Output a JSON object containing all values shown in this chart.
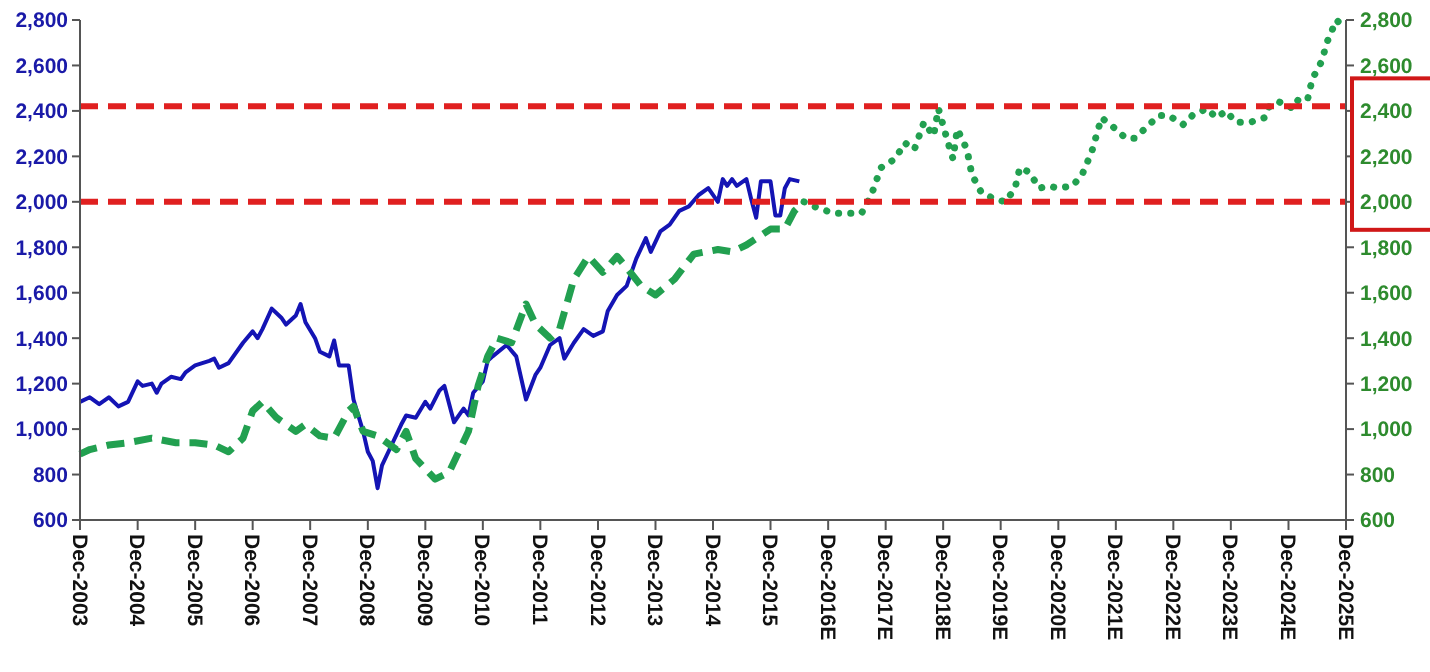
{
  "chart_data": {
    "type": "line",
    "marker": "none",
    "grid": false,
    "xlim": [
      "2003-12",
      "2025-12"
    ],
    "xticks": [
      {
        "value": "2003-12",
        "label": "Dec-2003"
      },
      {
        "value": "2004-12",
        "label": "Dec-2004"
      },
      {
        "value": "2005-12",
        "label": "Dec-2005"
      },
      {
        "value": "2006-12",
        "label": "Dec-2006"
      },
      {
        "value": "2007-12",
        "label": "Dec-2007"
      },
      {
        "value": "2008-12",
        "label": "Dec-2008"
      },
      {
        "value": "2009-12",
        "label": "Dec-2009"
      },
      {
        "value": "2010-12",
        "label": "Dec-2010"
      },
      {
        "value": "2011-12",
        "label": "Dec-2011"
      },
      {
        "value": "2012-12",
        "label": "Dec-2012"
      },
      {
        "value": "2013-12",
        "label": "Dec-2013"
      },
      {
        "value": "2014-12",
        "label": "Dec-2014"
      },
      {
        "value": "2015-12",
        "label": "Dec-2015"
      },
      {
        "value": "2016-12",
        "label": "Dec-2016E"
      },
      {
        "value": "2017-12",
        "label": "Dec-2017E"
      },
      {
        "value": "2018-12",
        "label": "Dec-2018E"
      },
      {
        "value": "2019-12",
        "label": "Dec-2019E"
      },
      {
        "value": "2020-12",
        "label": "Dec-2020E"
      },
      {
        "value": "2021-12",
        "label": "Dec-2021E"
      },
      {
        "value": "2022-12",
        "label": "Dec-2022E"
      },
      {
        "value": "2023-12",
        "label": "Dec-2023E"
      },
      {
        "value": "2024-12",
        "label": "Dec-2024E"
      },
      {
        "value": "2025-12",
        "label": "Dec-2025E"
      }
    ],
    "ylim": [
      600,
      2800
    ],
    "yticks": [
      600,
      800,
      {
        "value": 1000,
        "label": "1,000"
      },
      {
        "value": 1200,
        "label": "1,200"
      },
      {
        "value": 1400,
        "label": "1,400"
      },
      {
        "value": 1600,
        "label": "1,600"
      },
      {
        "value": 1800,
        "label": "1,800"
      },
      {
        "value": 2000,
        "label": "2,000"
      },
      {
        "value": 2200,
        "label": "2,200"
      },
      {
        "value": 2400,
        "label": "2,400"
      },
      {
        "value": 2600,
        "label": "2,600"
      },
      {
        "value": 2800,
        "label": "2,800"
      }
    ],
    "y2lim": [
      600,
      2800
    ],
    "y2ticks": [
      600,
      800,
      {
        "value": 1000,
        "label": "1,000"
      },
      {
        "value": 1200,
        "label": "1,200"
      },
      {
        "value": 1400,
        "label": "1,400"
      },
      {
        "value": 1600,
        "label": "1,600"
      },
      {
        "value": 1800,
        "label": "1,800"
      },
      {
        "value": 2000,
        "label": "2,000"
      },
      {
        "value": 2200,
        "label": "2,200"
      },
      {
        "value": 2400,
        "label": "2,400"
      },
      {
        "value": 2600,
        "label": "2,600"
      },
      {
        "value": 2800,
        "label": "2,800"
      }
    ],
    "ref_lines": [
      {
        "axis": "y",
        "value": 2000,
        "color": "#e02020",
        "line_style": "dashed"
      },
      {
        "axis": "y",
        "value": 2420,
        "color": "#e02020",
        "line_style": "dashed"
      }
    ],
    "series": [
      {
        "color": "#1414b4",
        "line_style": "solid",
        "x": [
          "2003-12",
          "2004-02",
          "2004-04",
          "2004-06",
          "2004-08",
          "2004-10",
          "2004-12",
          "2005-01",
          "2005-03",
          "2005-04",
          "2005-05",
          "2005-07",
          "2005-09",
          "2005-10",
          "2005-12",
          "2006-03",
          "2006-04",
          "2006-05",
          "2006-07",
          "2006-10",
          "2006-12",
          "2007-01",
          "2007-02",
          "2007-04",
          "2007-06",
          "2007-07",
          "2007-09",
          "2007-10",
          "2007-11",
          "2008-01",
          "2008-02",
          "2008-04",
          "2008-05",
          "2008-06",
          "2008-08",
          "2008-09",
          "2008-11",
          "2008-12",
          "2009-01",
          "2009-02",
          "2009-03",
          "2009-05",
          "2009-07",
          "2009-08",
          "2009-10",
          "2009-12",
          "2010-01",
          "2010-03",
          "2010-04",
          "2010-06",
          "2010-08",
          "2010-09",
          "2010-10",
          "2010-12",
          "2011-01",
          "2011-02",
          "2011-05",
          "2011-07",
          "2011-09",
          "2011-11",
          "2011-12",
          "2012-02",
          "2012-04",
          "2012-05",
          "2012-07",
          "2012-09",
          "2012-11",
          "2013-01",
          "2013-02",
          "2013-04",
          "2013-06",
          "2013-08",
          "2013-10",
          "2013-11",
          "2014-01",
          "2014-03",
          "2014-05",
          "2014-07",
          "2014-09",
          "2014-11",
          "2015-01",
          "2015-02",
          "2015-03",
          "2015-04",
          "2015-05",
          "2015-07",
          "2015-08",
          "2015-09",
          "2015-10",
          "2015-12",
          "2016-01",
          "2016-02",
          "2016-03",
          "2016-04",
          "2016-06"
        ],
        "values": [
          1120,
          1140,
          1110,
          1140,
          1100,
          1120,
          1210,
          1190,
          1200,
          1160,
          1200,
          1230,
          1220,
          1250,
          1280,
          1300,
          1310,
          1270,
          1290,
          1380,
          1430,
          1400,
          1440,
          1530,
          1490,
          1460,
          1500,
          1550,
          1470,
          1400,
          1340,
          1320,
          1390,
          1280,
          1280,
          1130,
          990,
          900,
          860,
          740,
          840,
          930,
          1020,
          1060,
          1050,
          1120,
          1090,
          1170,
          1190,
          1030,
          1090,
          1060,
          1160,
          1210,
          1300,
          1320,
          1370,
          1320,
          1130,
          1240,
          1270,
          1370,
          1400,
          1310,
          1380,
          1440,
          1410,
          1430,
          1520,
          1590,
          1630,
          1750,
          1840,
          1780,
          1870,
          1900,
          1960,
          1980,
          2030,
          2060,
          2000,
          2100,
          2070,
          2100,
          2070,
          2100,
          2010,
          1930,
          2090,
          2090,
          1940,
          1940,
          2060,
          2100,
          2090
        ]
      },
      {
        "color": "#22a050",
        "line_style": "dashed",
        "x": [
          "2003-12",
          "2004-02",
          "2004-06",
          "2004-10",
          "2005-03",
          "2005-08",
          "2005-12",
          "2006-04",
          "2006-07",
          "2006-10",
          "2006-12",
          "2007-02",
          "2007-05",
          "2007-09",
          "2007-11",
          "2008-02",
          "2008-05",
          "2008-08",
          "2008-09",
          "2008-11",
          "2009-02",
          "2009-06",
          "2009-08",
          "2009-10",
          "2010-02",
          "2010-05",
          "2010-09",
          "2010-11",
          "2011-01",
          "2011-03",
          "2011-06",
          "2011-09",
          "2011-11",
          "2012-02",
          "2012-04",
          "2012-07",
          "2012-10",
          "2013-01",
          "2013-04",
          "2013-06",
          "2013-09",
          "2013-12",
          "2014-04",
          "2014-08",
          "2015-01",
          "2015-04",
          "2015-07",
          "2015-12",
          "2016-03",
          "2016-05",
          "2016-07"
        ],
        "values": [
          890,
          910,
          930,
          940,
          960,
          940,
          940,
          930,
          900,
          960,
          1080,
          1120,
          1050,
          990,
          1020,
          970,
          960,
          1080,
          1100,
          990,
          970,
          910,
          990,
          870,
          780,
          810,
          990,
          1190,
          1320,
          1400,
          1380,
          1550,
          1460,
          1400,
          1440,
          1660,
          1760,
          1690,
          1760,
          1710,
          1630,
          1590,
          1660,
          1770,
          1790,
          1780,
          1810,
          1880,
          1880,
          1960,
          2000
        ]
      },
      {
        "color": "#22a050",
        "line_style": "dotted",
        "x": [
          "2016-07",
          "2016-09",
          "2017-01",
          "2017-04",
          "2017-07",
          "2017-09",
          "2017-11",
          "2018-02",
          "2018-04",
          "2018-06",
          "2018-08",
          "2018-10",
          "2018-11",
          "2019-01",
          "2019-02",
          "2019-03",
          "2019-05",
          "2019-06",
          "2019-08",
          "2019-11",
          "2020-01",
          "2020-03",
          "2020-04",
          "2020-06",
          "2020-08",
          "2020-10",
          "2020-12",
          "2021-03",
          "2021-05",
          "2021-07",
          "2021-09",
          "2021-12",
          "2022-02",
          "2022-04",
          "2022-07",
          "2022-09",
          "2022-11",
          "2023-02",
          "2023-04",
          "2023-07",
          "2023-09",
          "2023-11",
          "2024-01",
          "2024-04",
          "2024-07",
          "2024-08",
          "2024-10",
          "2025-01",
          "2025-02",
          "2025-04",
          "2025-05",
          "2025-07",
          "2025-08",
          "2025-10",
          "2025-12"
        ],
        "values": [
          2000,
          1980,
          1950,
          1950,
          1950,
          2030,
          2150,
          2190,
          2260,
          2230,
          2350,
          2290,
          2410,
          2260,
          2190,
          2320,
          2230,
          2120,
          2040,
          2010,
          2000,
          2060,
          2150,
          2130,
          2060,
          2070,
          2060,
          2070,
          2120,
          2220,
          2370,
          2320,
          2280,
          2280,
          2340,
          2380,
          2380,
          2340,
          2380,
          2410,
          2370,
          2400,
          2350,
          2350,
          2370,
          2420,
          2440,
          2410,
          2450,
          2450,
          2540,
          2620,
          2700,
          2800,
          2760
        ]
      }
    ]
  }
}
